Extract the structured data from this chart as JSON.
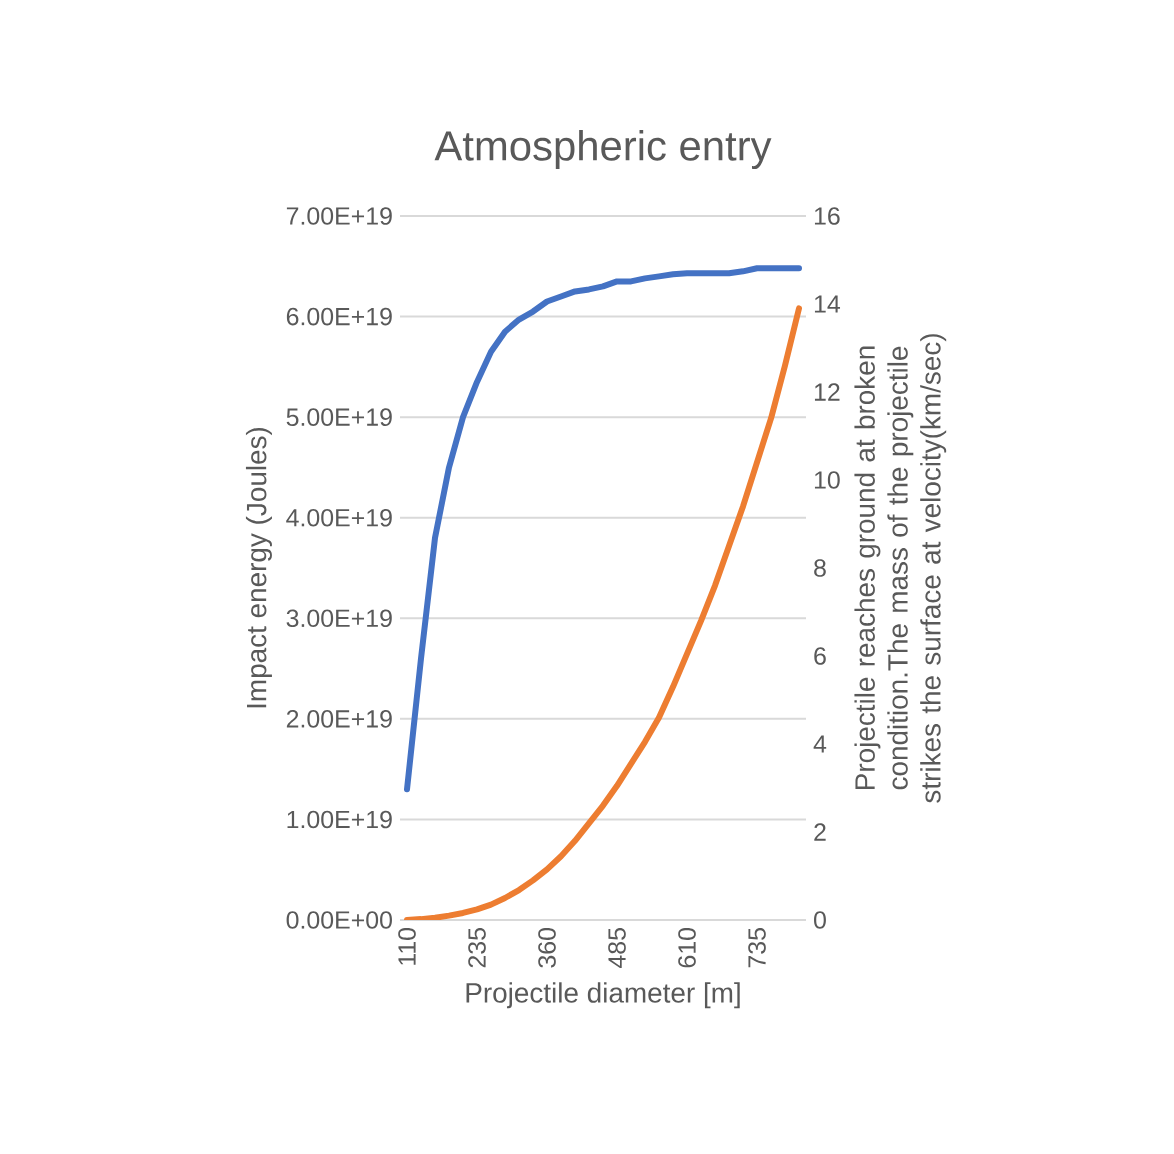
{
  "chart_data": {
    "type": "line",
    "title": "Atmospheric entry",
    "xlabel": "Projectile diameter [m]",
    "ylabel": "Impact energy (Joules)",
    "y2label": "Projectile reaches ground at broken condition.The mass of the projectile strikes the surface at velocity(km/sec)",
    "categories": [
      "110",
      null,
      null,
      null,
      null,
      "235",
      null,
      null,
      null,
      null,
      "360",
      null,
      null,
      null,
      null,
      "485",
      null,
      null,
      null,
      null,
      "610",
      null,
      null,
      null,
      null,
      "735",
      null,
      null,
      null
    ],
    "ylim": [
      0,
      7e+19
    ],
    "yticks": [
      {
        "value": 0,
        "label": "0.00E+00"
      },
      {
        "value": 1e+19,
        "label": "1.00E+19"
      },
      {
        "value": 2e+19,
        "label": "2.00E+19"
      },
      {
        "value": 3e+19,
        "label": "3.00E+19"
      },
      {
        "value": 4e+19,
        "label": "4.00E+19"
      },
      {
        "value": 5e+19,
        "label": "5.00E+19"
      },
      {
        "value": 6e+19,
        "label": "6.00E+19"
      },
      {
        "value": 7e+19,
        "label": "7.00E+19"
      }
    ],
    "y2lim": [
      0,
      16
    ],
    "y2ticks": [
      0,
      2,
      4,
      6,
      8,
      10,
      12,
      14,
      16
    ],
    "grid": "y",
    "marker": "none",
    "line_style": "solid",
    "series": [
      {
        "color": "#4472c4",
        "values": [
          1.3e+19,
          2.6e+19,
          3.8e+19,
          4.5e+19,
          5e+19,
          5.35e+19,
          5.65e+19,
          5.85e+19,
          5.97e+19,
          6.05e+19,
          6.15e+19,
          6.2e+19,
          6.25e+19,
          6.27e+19,
          6.3e+19,
          6.35e+19,
          6.35e+19,
          6.38e+19,
          6.4e+19,
          6.42e+19,
          6.43e+19,
          6.43e+19,
          6.43e+19,
          6.43e+19,
          6.45e+19,
          6.48e+19,
          6.48e+19,
          6.48e+19,
          6.48e+19
        ]
      },
      {
        "color": "#ed7d31",
        "axis": "y2",
        "values": [
          0,
          0.02,
          0.05,
          0.1,
          0.16,
          0.24,
          0.35,
          0.5,
          0.68,
          0.9,
          1.15,
          1.45,
          1.8,
          2.2,
          2.6,
          3.05,
          3.55,
          4.05,
          4.6,
          5.3,
          6.05,
          6.8,
          7.6,
          8.5,
          9.4,
          10.4,
          11.4,
          12.6,
          13.9
        ]
      }
    ]
  }
}
